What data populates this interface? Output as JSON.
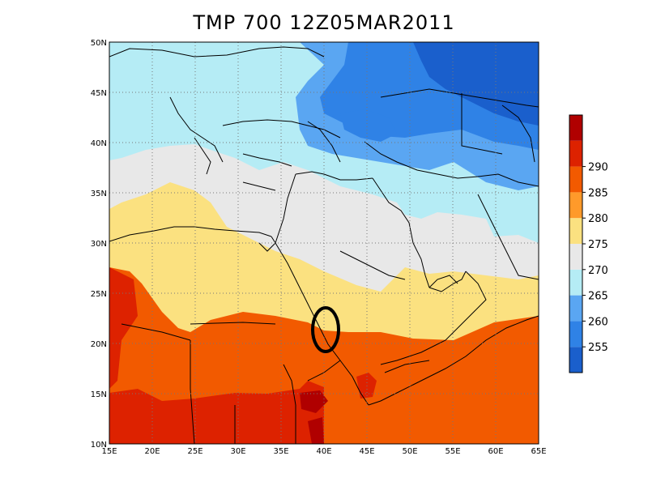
{
  "title": "TMP 700 12Z05MAR2011",
  "map": {
    "lon_range": [
      15,
      65
    ],
    "lat_range": [
      10,
      50
    ],
    "lon_ticks": [
      "15E",
      "20E",
      "25E",
      "30E",
      "35E",
      "40E",
      "45E",
      "50E",
      "55E",
      "60E",
      "65E"
    ],
    "lat_ticks": [
      "10N",
      "15N",
      "20N",
      "25N",
      "30N",
      "35N",
      "40N",
      "45N",
      "50N"
    ],
    "grid": "dotted",
    "highlight": {
      "shape": "ellipse",
      "color": "#000000",
      "center_lon": 40.2,
      "center_lat": 21.5
    }
  },
  "colorbar": {
    "levels": [
      "255",
      "260",
      "265",
      "270",
      "275",
      "280",
      "285",
      "290"
    ],
    "colors": [
      "#1a5fcc",
      "#2f82e6",
      "#5aa6f2",
      "#b5ecf5",
      "#e8e8e8",
      "#fbe180",
      "#ff9a2a",
      "#f25a00",
      "#dd2200",
      "#b00000"
    ]
  }
}
